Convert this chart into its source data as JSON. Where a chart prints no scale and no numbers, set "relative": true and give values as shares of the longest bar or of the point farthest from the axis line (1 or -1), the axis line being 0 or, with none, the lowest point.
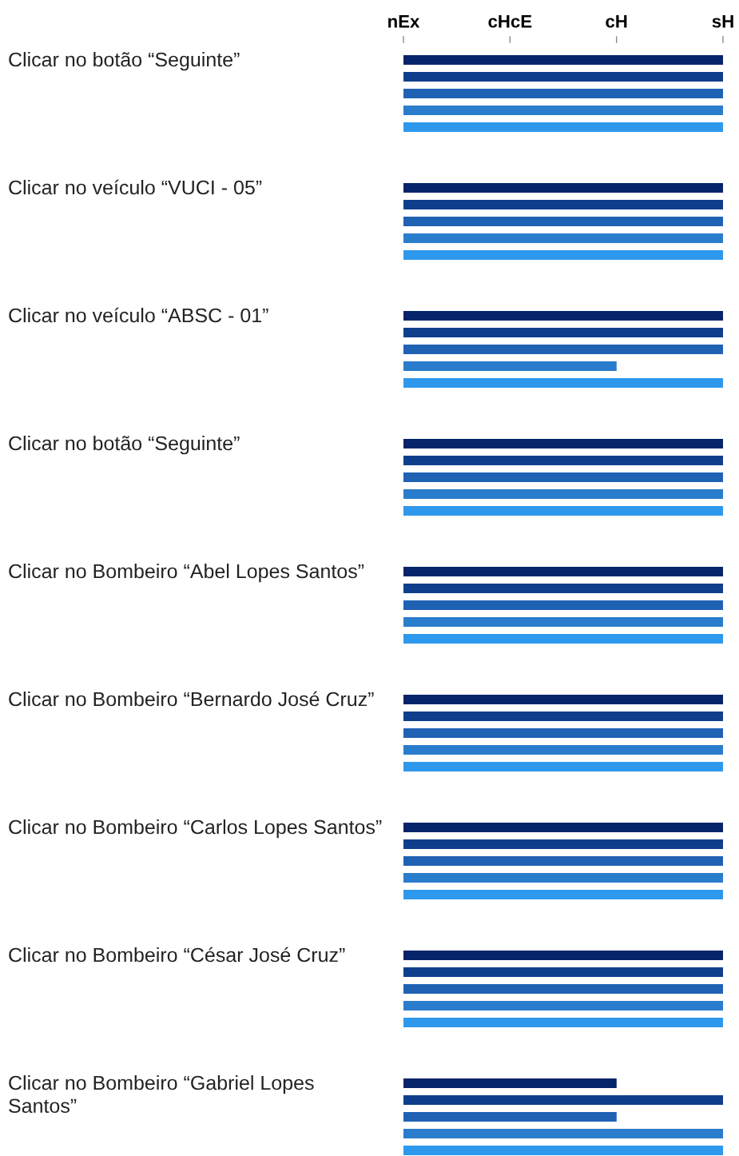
{
  "chart_data": {
    "type": "bar",
    "orientation": "horizontal",
    "categories": [
      "Clicar no botão “Seguinte”",
      "Clicar no veículo “VUCI - 05”",
      "Clicar no veículo “ABSC - 01”",
      "Clicar no botão “Seguinte”",
      "Clicar no Bombeiro “Abel Lopes Santos”",
      "Clicar no Bombeiro “Bernardo José Cruz”",
      "Clicar no Bombeiro “Carlos Lopes Santos”",
      "Clicar no Bombeiro “César José Cruz”",
      "Clicar no Bombeiro “Gabriel Lopes Santos”"
    ],
    "series": [
      {
        "color": "#06246a",
        "values": [
          1,
          1,
          1,
          1,
          1,
          1,
          1,
          1,
          0.667
        ]
      },
      {
        "color": "#0f3f8c",
        "values": [
          1,
          1,
          1,
          1,
          1,
          1,
          1,
          1,
          1
        ]
      },
      {
        "color": "#1f62b4",
        "values": [
          1,
          1,
          1,
          1,
          1,
          1,
          1,
          1,
          0.667
        ]
      },
      {
        "color": "#2a7ccc",
        "values": [
          1,
          1,
          0.667,
          1,
          1,
          1,
          1,
          1,
          1
        ]
      },
      {
        "color": "#2e98ec",
        "values": [
          1,
          1,
          1,
          1,
          1,
          1,
          1,
          1,
          1
        ]
      }
    ],
    "relative": true,
    "annotations": [
      "nEx",
      "cHcE",
      "cH",
      "sH"
    ],
    "grid": false
  }
}
